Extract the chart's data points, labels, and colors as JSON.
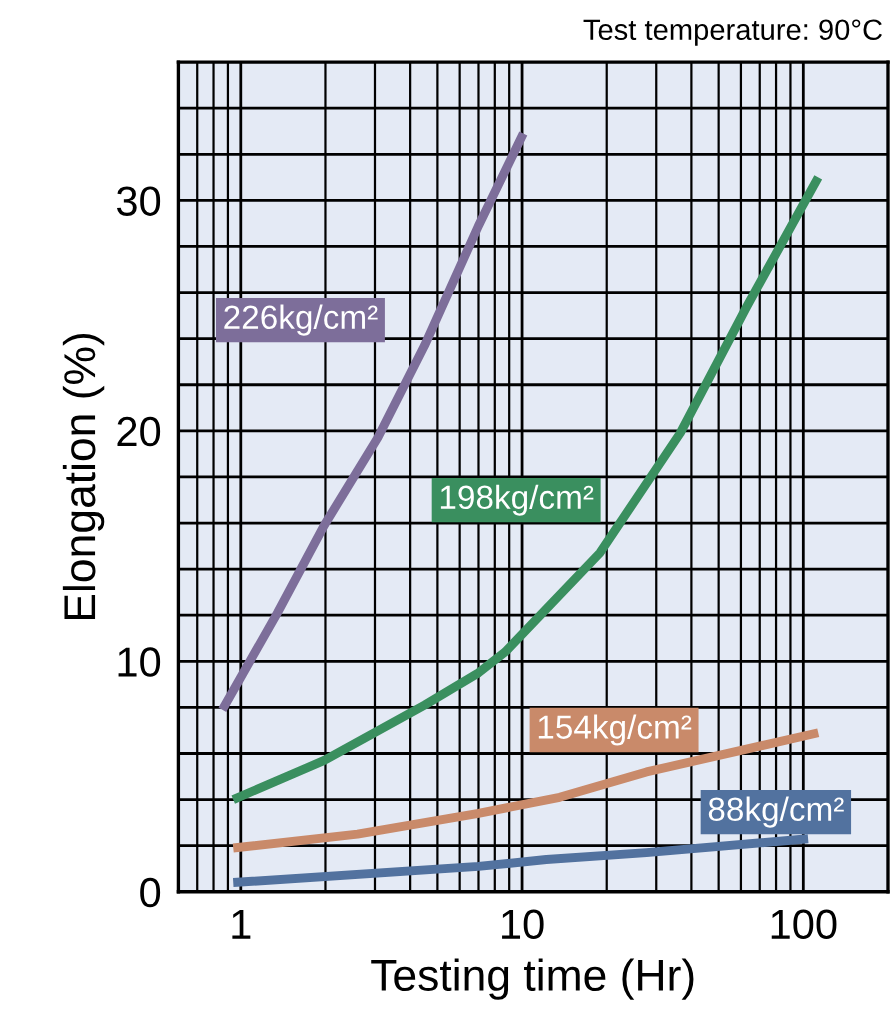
{
  "chart_data": {
    "type": "line",
    "xlabel": "Testing time (Hr)",
    "ylabel": "Elongation (%)",
    "log": "x",
    "xlim": [
      0.6,
      200
    ],
    "xticks": [
      1,
      10,
      100
    ],
    "ylim": [
      0,
      36
    ],
    "yticks": [
      0,
      {
        "value": 2,
        "label": null
      },
      {
        "value": 4,
        "label": null
      },
      {
        "value": 6,
        "label": null
      },
      {
        "value": 8,
        "label": null
      },
      10,
      {
        "value": 12,
        "label": null
      },
      {
        "value": 14,
        "label": null
      },
      {
        "value": 16,
        "label": null
      },
      {
        "value": 18,
        "label": null
      },
      20,
      {
        "value": 22,
        "label": null
      },
      {
        "value": 24,
        "label": null
      },
      {
        "value": 26,
        "label": null
      },
      {
        "value": 28,
        "label": null
      },
      30,
      {
        "value": 32,
        "label": null
      },
      {
        "value": 34,
        "label": null
      }
    ],
    "grid": true,
    "marker": "none",
    "line_style": "solid",
    "series": [
      {
        "name": "226kg/cm²",
        "color": "#7d6e9a",
        "x": [
          0.86,
          1.35,
          1.98,
          3.07,
          4.5,
          7.0,
          10.1
        ],
        "values": [
          7.9,
          12.1,
          15.9,
          19.7,
          23.7,
          28.9,
          32.9
        ]
      },
      {
        "name": "198kg/cm²",
        "color": "#3a8f5f",
        "x": [
          0.94,
          1.98,
          4.5,
          7.0,
          8.7,
          18.9,
          36.5,
          63,
          113
        ],
        "values": [
          4.0,
          5.7,
          8.1,
          9.5,
          10.4,
          14.7,
          19.9,
          25.4,
          31.0
        ]
      },
      {
        "name": "154kg/cm²",
        "color": "#c98a6a",
        "x": [
          0.94,
          2.6,
          7.0,
          13.6,
          27.7,
          113
        ],
        "values": [
          1.9,
          2.5,
          3.4,
          4.1,
          5.2,
          6.9
        ]
      },
      {
        "name": "88kg/cm²",
        "color": "#52729f",
        "x": [
          0.94,
          7.0,
          12.2,
          27.7,
          104
        ],
        "values": [
          0.4,
          1.1,
          1.4,
          1.7,
          2.3
        ]
      }
    ],
    "annotations": [
      "Test temperature: 90°C"
    ]
  }
}
